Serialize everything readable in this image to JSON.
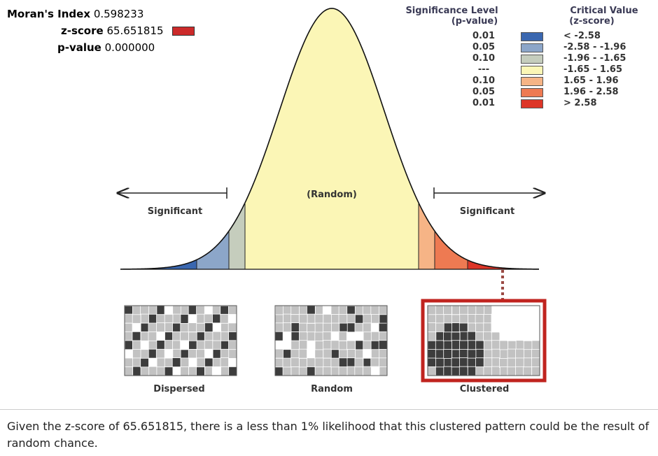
{
  "stats": {
    "moran_label": "Moran's Index",
    "moran_value": "0.598233",
    "z_label": "z-score",
    "z_value": "65.651815",
    "p_label": "p-value",
    "p_value": "0.000000"
  },
  "legend": {
    "head_p": "Significance Level",
    "head_p2": "(p-value)",
    "head_z": "Critical Value",
    "head_z2": "(z-score)",
    "rows": [
      {
        "p": "0.01",
        "z": "< -2.58",
        "color": "#3a67b0"
      },
      {
        "p": "0.05",
        "z": "-2.58 - -1.96",
        "color": "#8ca6c9"
      },
      {
        "p": "0.10",
        "z": "-1.96 - -1.65",
        "color": "#c5cdbd"
      },
      {
        "p": "---",
        "z": "-1.65 - 1.65",
        "color": "#fbf6b6"
      },
      {
        "p": "0.10",
        "z": "1.65 - 1.96",
        "color": "#f6b486"
      },
      {
        "p": "0.05",
        "z": "1.96 - 2.58",
        "color": "#ee7a52"
      },
      {
        "p": "0.01",
        "z": "> 2.58",
        "color": "#dd3527"
      }
    ]
  },
  "curve": {
    "random_label": "(Random)",
    "left_label": "Significant",
    "right_label": "Significant"
  },
  "maps": {
    "dispersed": "Dispersed",
    "random": "Random",
    "clustered": "Clustered"
  },
  "caption": "Given the z-score of 65.651815, there is a less than 1% likelihood that this clustered pattern could be the result of random chance."
}
